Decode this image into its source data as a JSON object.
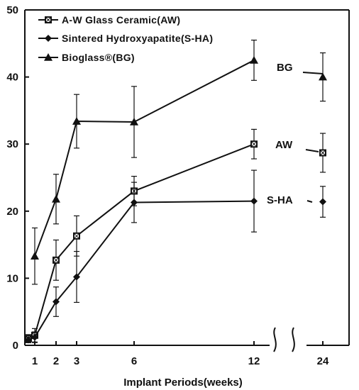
{
  "chart_data": {
    "type": "line",
    "xlabel": "Implant Periods(weeks)",
    "ylabel": "",
    "ylim": [
      0,
      50
    ],
    "yticks": [
      0,
      10,
      20,
      30,
      40,
      50
    ],
    "x_ticks": [
      "1",
      "2",
      "3",
      "6",
      "12",
      "24"
    ],
    "x_axis_break": "between 12 and 24",
    "grid": false,
    "legend_position": "top-left",
    "legend": [
      {
        "label": "A-W  Glass  Ceramic(AW)",
        "marker": "square"
      },
      {
        "label": "Sintered  Hydroxyapatite(S-HA)",
        "marker": "diamond"
      },
      {
        "label": "Bioglass®(BG)",
        "marker": "triangle"
      }
    ],
    "series": [
      {
        "name": "A-W  Glass  Ceramic(AW)",
        "end_label": "AW",
        "marker": "square",
        "x": [
          0,
          1,
          2,
          3,
          6,
          12,
          24
        ],
        "y": [
          1.0,
          1.5,
          12.7,
          16.3,
          23.0,
          30.0,
          28.7
        ],
        "err": [
          0.6,
          1.0,
          3.0,
          3.0,
          2.2,
          2.2,
          2.9
        ]
      },
      {
        "name": "Sintered  Hydroxyapatite(S-HA)",
        "end_label": "S-HA",
        "marker": "diamond",
        "x": [
          0,
          1,
          2,
          3,
          6,
          12,
          24
        ],
        "y": [
          0.8,
          1.2,
          6.5,
          10.2,
          21.3,
          21.5,
          21.4
        ],
        "err": [
          0.4,
          0.8,
          2.2,
          3.8,
          3.0,
          4.6,
          2.3
        ]
      },
      {
        "name": "Bioglass®(BG)",
        "end_label": "BG",
        "marker": "triangle",
        "x": [
          1,
          2,
          3,
          6,
          12,
          24
        ],
        "y": [
          13.3,
          21.8,
          33.4,
          33.3,
          42.5,
          40.0
        ],
        "err": [
          4.2,
          3.7,
          4.0,
          5.3,
          3.0,
          3.6
        ]
      }
    ]
  }
}
